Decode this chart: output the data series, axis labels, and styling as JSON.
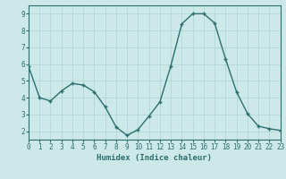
{
  "x": [
    0,
    1,
    2,
    3,
    4,
    5,
    6,
    7,
    8,
    9,
    10,
    11,
    12,
    13,
    14,
    15,
    16,
    17,
    18,
    19,
    20,
    21,
    22,
    23
  ],
  "y": [
    5.85,
    4.0,
    3.8,
    4.4,
    4.85,
    4.75,
    4.35,
    3.45,
    2.25,
    1.75,
    2.1,
    2.9,
    3.75,
    5.9,
    8.4,
    9.0,
    9.0,
    8.45,
    6.3,
    4.35,
    3.05,
    2.3,
    2.15,
    2.05
  ],
  "line_color": "#2e6e6e",
  "marker": "+",
  "marker_size": 3,
  "line_width": 1.0,
  "bg_color": "#cce8e8",
  "grid_color": "#aad4d4",
  "xlabel": "Humidex (Indice chaleur)",
  "xlim": [
    0,
    23
  ],
  "ylim": [
    1.5,
    9.5
  ],
  "yticks": [
    2,
    3,
    4,
    5,
    6,
    7,
    8,
    9
  ],
  "xticks": [
    0,
    1,
    2,
    3,
    4,
    5,
    6,
    7,
    8,
    9,
    10,
    11,
    12,
    13,
    14,
    15,
    16,
    17,
    18,
    19,
    20,
    21,
    22,
    23
  ],
  "xlabel_fontsize": 6.5,
  "tick_fontsize": 5.5,
  "tick_color": "#2e6e6e",
  "axis_color": "#2e6e6e",
  "font_family": "monospace"
}
